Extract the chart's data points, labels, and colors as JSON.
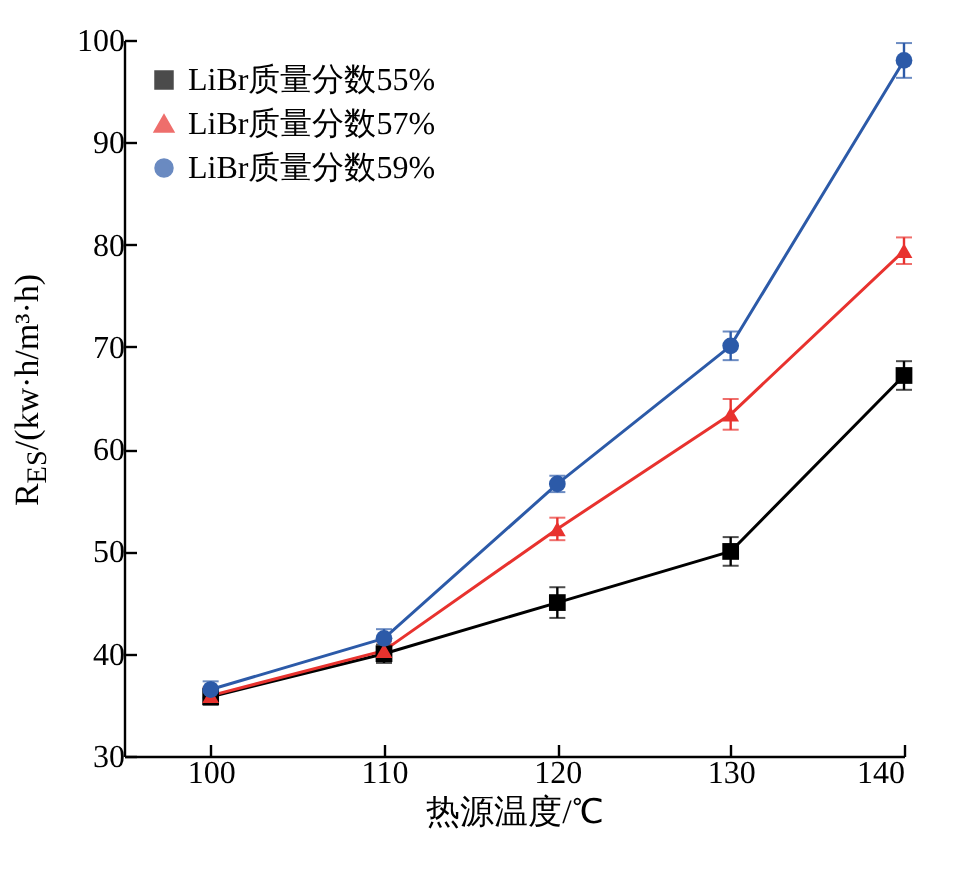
{
  "chart_data": {
    "type": "line",
    "xlabel": "热源温度/℃",
    "ylabel": "R$_{ES}$/(kw·h/m³·h)",
    "x": [
      100,
      110,
      120,
      130,
      140
    ],
    "xlim": [
      95,
      140
    ],
    "xticks": [
      100,
      110,
      120,
      130,
      140
    ],
    "ylim": [
      30,
      100
    ],
    "yticks": [
      30,
      40,
      50,
      60,
      70,
      80,
      90,
      100
    ],
    "grid": false,
    "legend": "top left",
    "series": [
      {
        "name": "LiBr质量分数55%",
        "color": "#000000",
        "marker": "square",
        "values": [
          35.8,
          40,
          45,
          50,
          67.2
        ],
        "errors": [
          0.8,
          0.9,
          1.5,
          1.4,
          1.4
        ]
      },
      {
        "name": "LiBr质量分数57%",
        "color": "#e8322e",
        "marker": "triangle",
        "values": [
          35.9,
          40.3,
          52.2,
          63.4,
          79.4
        ],
        "errors": [
          0.8,
          0.9,
          1.1,
          1.5,
          1.3
        ]
      },
      {
        "name": "LiBr质量分数59%",
        "color": "#2c5aa8",
        "marker": "circle",
        "values": [
          36.5,
          41.5,
          56.6,
          70.1,
          98
        ],
        "errors": [
          0.8,
          0.9,
          0.8,
          1.4,
          1.7
        ]
      }
    ]
  }
}
